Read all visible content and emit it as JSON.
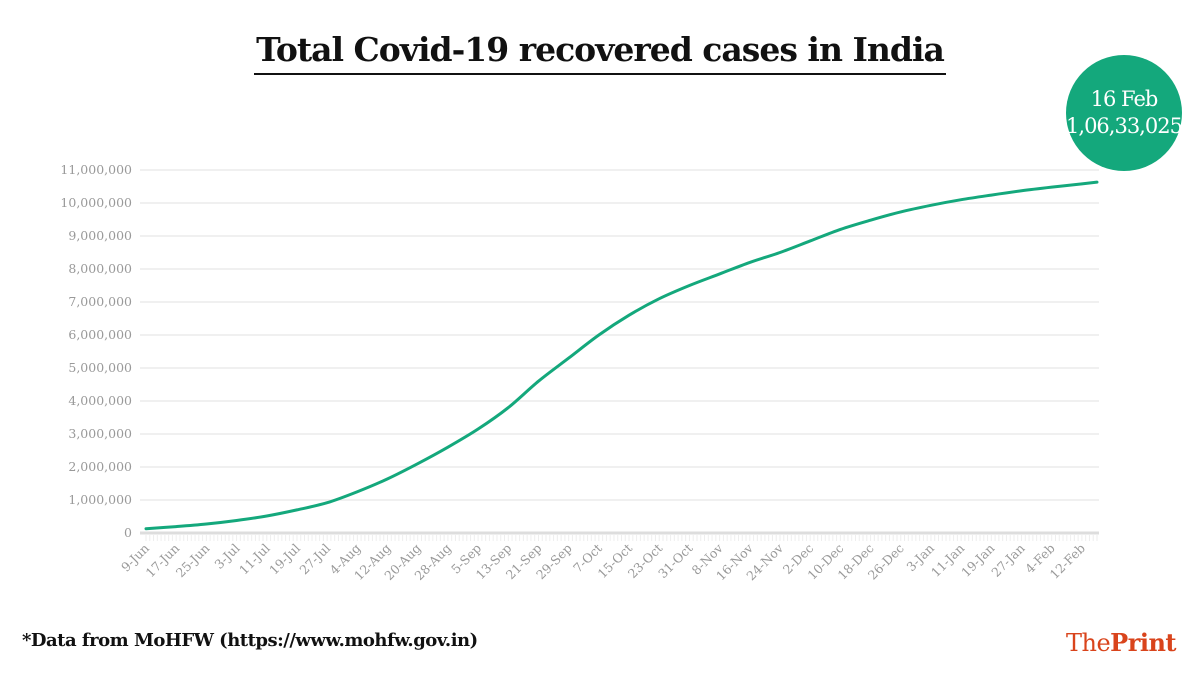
{
  "chart_data": {
    "type": "line",
    "title": "Total Covid-19 recovered cases in India",
    "xlabel": "",
    "ylabel": "",
    "ylim": [
      0,
      11000000
    ],
    "yticks": [
      "0",
      "1,000,000",
      "2,000,000",
      "3,000,000",
      "4,000,000",
      "5,000,000",
      "6,000,000",
      "7,000,000",
      "8,000,000",
      "9,000,000",
      "10,000,000",
      "11,000,000"
    ],
    "xticks": [
      "9-Jun",
      "17-Jun",
      "25-Jun",
      "3-Jul",
      "11-Jul",
      "19-Jul",
      "27-Jul",
      "4-Aug",
      "12-Aug",
      "20-Aug",
      "28-Aug",
      "5-Sep",
      "13-Sep",
      "21-Sep",
      "29-Sep",
      "7-Oct",
      "15-Oct",
      "23-Oct",
      "31-Oct",
      "8-Nov",
      "16-Nov",
      "24-Nov",
      "2-Dec",
      "10-Dec",
      "18-Dec",
      "26-Dec",
      "3-Jan",
      "11-Jan",
      "19-Jan",
      "27-Jan",
      "4-Feb",
      "12-Feb"
    ],
    "grid": true,
    "color": "#14a87c",
    "x": [
      "9-Jun",
      "17-Jun",
      "25-Jun",
      "3-Jul",
      "11-Jul",
      "19-Jul",
      "27-Jul",
      "4-Aug",
      "12-Aug",
      "20-Aug",
      "28-Aug",
      "5-Sep",
      "13-Sep",
      "21-Sep",
      "29-Sep",
      "7-Oct",
      "15-Oct",
      "23-Oct",
      "31-Oct",
      "8-Nov",
      "16-Nov",
      "24-Nov",
      "2-Dec",
      "10-Dec",
      "18-Dec",
      "26-Dec",
      "3-Jan",
      "11-Jan",
      "19-Jan",
      "27-Jan",
      "4-Feb",
      "12-Feb",
      "16-Feb"
    ],
    "values": [
      130000,
      194000,
      272000,
      379000,
      515000,
      700000,
      917000,
      1250000,
      1640000,
      2100000,
      2600000,
      3150000,
      3800000,
      4600000,
      5300000,
      6000000,
      6600000,
      7100000,
      7500000,
      7850000,
      8200000,
      8500000,
      8850000,
      9200000,
      9480000,
      9730000,
      9930000,
      10100000,
      10240000,
      10370000,
      10480000,
      10580000,
      10633025
    ]
  },
  "callout": {
    "date": "16 Feb",
    "value": "1,06,33,025"
  },
  "source": "*Data from MoHFW (https://www.mohfw.gov.in)",
  "logo": {
    "part1": "The",
    "part2": "Print",
    "color": "#d9441c"
  }
}
